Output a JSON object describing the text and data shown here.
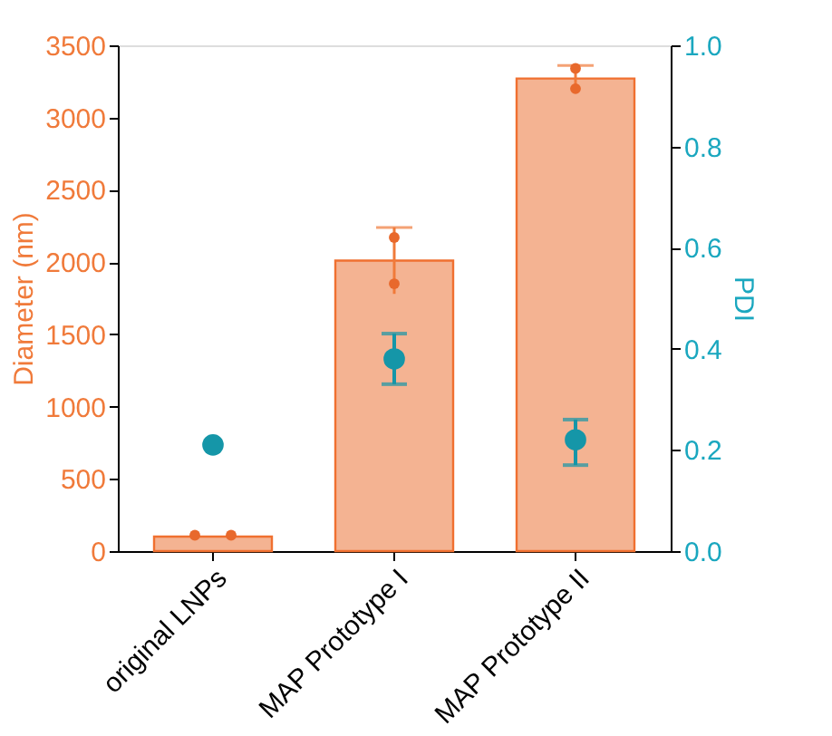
{
  "chart_data": {
    "type": "bar",
    "ylabel": "Diameter (nm)",
    "y2label": "PDI",
    "categories": [
      "original LNPs",
      "MAP Prototype I",
      "MAP Prototype II"
    ],
    "series": [
      {
        "color": "#f4b392",
        "values": [
          100,
          2010,
          3270
        ],
        "errors": [
          null,
          230,
          90
        ]
      },
      {
        "type": "scatter",
        "color": "#e8692c",
        "x": [
          "original LNPs",
          "original LNPs",
          "MAP Prototype I",
          "MAP Prototype I",
          "MAP Prototype II",
          "MAP Prototype II"
        ],
        "values": [
          110,
          110,
          2170,
          1850,
          3340,
          3200
        ]
      },
      {
        "type": "scatter",
        "axis": "y2",
        "color": "#1596a8",
        "values": [
          0.21,
          0.38,
          0.22
        ],
        "errors": [
          null,
          [
            0.33,
            0.43
          ],
          [
            0.17,
            0.26
          ]
        ]
      }
    ],
    "ylim": [
      0,
      3500
    ],
    "yticks": [
      0,
      500,
      1000,
      1500,
      2000,
      2500,
      3000,
      3500
    ],
    "y2lim": [
      0,
      1.0
    ],
    "y2ticks": [
      {
        "value": 0,
        "label": "0.0"
      },
      {
        "value": 0.2,
        "label": "0.2"
      },
      {
        "value": 0.4,
        "label": "0.4"
      },
      {
        "value": 0.6,
        "label": "0.6"
      },
      {
        "value": 0.8,
        "label": "0.8"
      },
      {
        "value": 1.0,
        "label": "1.0"
      }
    ],
    "grid": false
  }
}
